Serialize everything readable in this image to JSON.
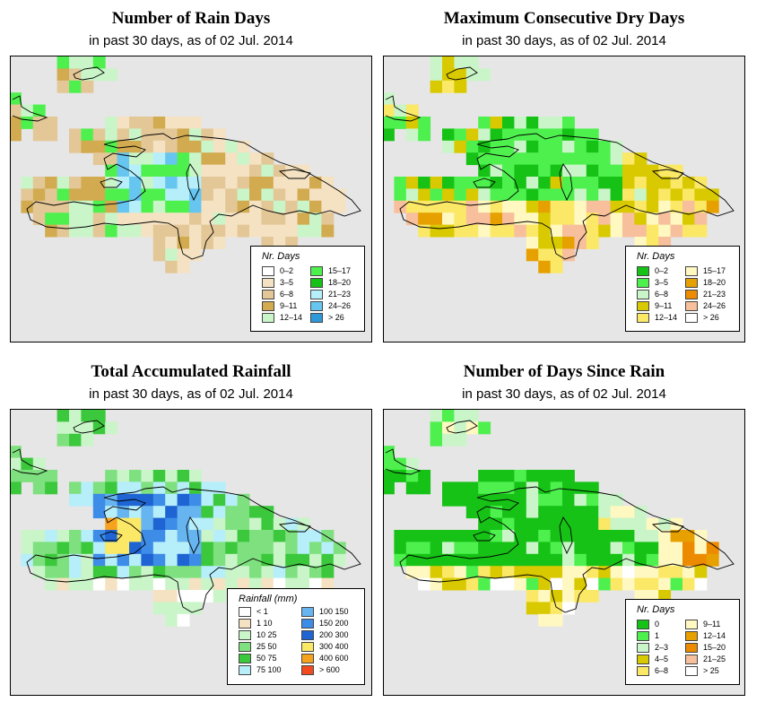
{
  "panels": [
    {
      "id": "rain-days",
      "title": "Number of Rain Days",
      "subtitle": "in past 30 days, as of  02 Jul. 2014",
      "legend": {
        "title": "Nr. Days",
        "items": [
          {
            "label": "0–2",
            "color": "#ffffff"
          },
          {
            "label": "3–5",
            "color": "#f5e2c2"
          },
          {
            "label": "6–8",
            "color": "#e3c797"
          },
          {
            "label": "9–11",
            "color": "#d2aa50"
          },
          {
            "label": "12–14",
            "color": "#c9f5c9"
          },
          {
            "label": "15–17",
            "color": "#4ef04e"
          },
          {
            "label": "18–20",
            "color": "#16c216"
          },
          {
            "label": "21–23",
            "color": "#b6eefa"
          },
          {
            "label": "24–26",
            "color": "#66c6f0"
          },
          {
            "label": "> 26",
            "color": "#2e98d8"
          }
        ]
      }
    },
    {
      "id": "max-dry-days",
      "title": "Maximum Consecutive Dry Days",
      "subtitle": "in past 30 days, as of  02 Jul. 2014",
      "legend": {
        "title": "Nr. Days",
        "items": [
          {
            "label": "0–2",
            "color": "#16c216"
          },
          {
            "label": "3–5",
            "color": "#4ef04e"
          },
          {
            "label": "6–8",
            "color": "#c9f5c9"
          },
          {
            "label": "9–11",
            "color": "#d9c900"
          },
          {
            "label": "12–14",
            "color": "#fae866"
          },
          {
            "label": "15–17",
            "color": "#fff8c0"
          },
          {
            "label": "18–20",
            "color": "#e6a000"
          },
          {
            "label": "21–23",
            "color": "#ec8a00"
          },
          {
            "label": "24–26",
            "color": "#f7bf9c"
          },
          {
            "label": "> 26",
            "color": "#ffffff"
          }
        ]
      }
    },
    {
      "id": "total-rainfall",
      "title": "Total Accumulated Rainfall",
      "subtitle": "in past 30 days, as of  02 Jul. 2014",
      "legend": {
        "title": "Rainfall (mm)",
        "items": [
          {
            "label": "< 1",
            "color": "#ffffff"
          },
          {
            "label": "1   10",
            "color": "#f5e2c2"
          },
          {
            "label": "10   25",
            "color": "#c9f5c9"
          },
          {
            "label": "25   50",
            "color": "#7ee07e"
          },
          {
            "label": "50   75",
            "color": "#3cc83c"
          },
          {
            "label": "75  100",
            "color": "#b6eefa"
          },
          {
            "label": "100  150",
            "color": "#66b4f0"
          },
          {
            "label": "150  200",
            "color": "#3c8ce8"
          },
          {
            "label": "200  300",
            "color": "#1e64d2"
          },
          {
            "label": "300  400",
            "color": "#fae866"
          },
          {
            "label": "400  600",
            "color": "#f7a21e"
          },
          {
            "label": "> 600",
            "color": "#f24a1e"
          }
        ]
      }
    },
    {
      "id": "days-since-rain",
      "title": "Number of Days Since Rain",
      "subtitle": "in past 30 days, as of  02 Jul. 2014",
      "legend": {
        "title": "Nr. Days",
        "items": [
          {
            "label": "0",
            "color": "#16c216"
          },
          {
            "label": "1",
            "color": "#4ef04e"
          },
          {
            "label": "2–3",
            "color": "#c9f5c9"
          },
          {
            "label": "4–5",
            "color": "#d9c900"
          },
          {
            "label": "6–8",
            "color": "#fae866"
          },
          {
            "label": "9–11",
            "color": "#fff8c0"
          },
          {
            "label": "12–14",
            "color": "#e6a000"
          },
          {
            "label": "15–20",
            "color": "#ec8a00"
          },
          {
            "label": "21–25",
            "color": "#f7bf9c"
          },
          {
            "label": "> 25",
            "color": "#ffffff"
          }
        ]
      }
    }
  ]
}
